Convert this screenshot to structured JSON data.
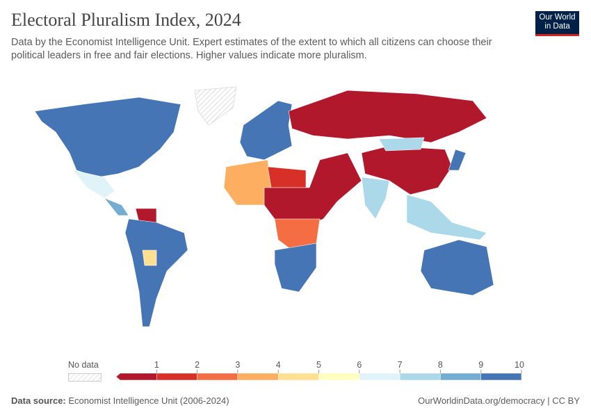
{
  "header": {
    "title": "Electoral Pluralism Index, 2024",
    "subtitle": "Data by the Economist Intelligence Unit. Expert estimates of the extent to which all citizens can choose their political leaders in free and fair elections. Higher values indicate more pluralism.",
    "logo_text": "Our World in Data"
  },
  "legend": {
    "no_data_label": "No data",
    "ticks": [
      "1",
      "2",
      "3",
      "4",
      "5",
      "6",
      "7",
      "8",
      "9",
      "10"
    ],
    "colors": [
      "#b2182b",
      "#d73027",
      "#f46d43",
      "#fdae61",
      "#fee090",
      "#ffffbf",
      "#e0f3f8",
      "#abd9e9",
      "#74add1",
      "#4575b4"
    ]
  },
  "map_regions": [
    {
      "name": "north-america",
      "value_bin": 10
    },
    {
      "name": "mexico",
      "value_bin": 7
    },
    {
      "name": "central-america",
      "value_bin": 9
    },
    {
      "name": "venezuela",
      "value_bin": 1
    },
    {
      "name": "south-america",
      "value_bin": 10
    },
    {
      "name": "bolivia",
      "value_bin": 5
    },
    {
      "name": "europe",
      "value_bin": 10
    },
    {
      "name": "russia",
      "value_bin": 1
    },
    {
      "name": "north-africa",
      "value_bin": 4
    },
    {
      "name": "libya-egypt",
      "value_bin": 2
    },
    {
      "name": "sahel-middle-east",
      "value_bin": 1
    },
    {
      "name": "central-africa",
      "value_bin": 3
    },
    {
      "name": "southern-africa",
      "value_bin": 10
    },
    {
      "name": "india",
      "value_bin": 8
    },
    {
      "name": "china",
      "value_bin": 1
    },
    {
      "name": "mongolia",
      "value_bin": 8
    },
    {
      "name": "southeast-asia",
      "value_bin": 8
    },
    {
      "name": "australia",
      "value_bin": 10
    },
    {
      "name": "japan",
      "value_bin": 10
    },
    {
      "name": "greenland",
      "value_bin": 0
    }
  ],
  "footer": {
    "source_label": "Data source:",
    "source": "Economist Intelligence Unit (2006-2024)",
    "url": "OurWorldinData.org/democracy | CC BY"
  }
}
